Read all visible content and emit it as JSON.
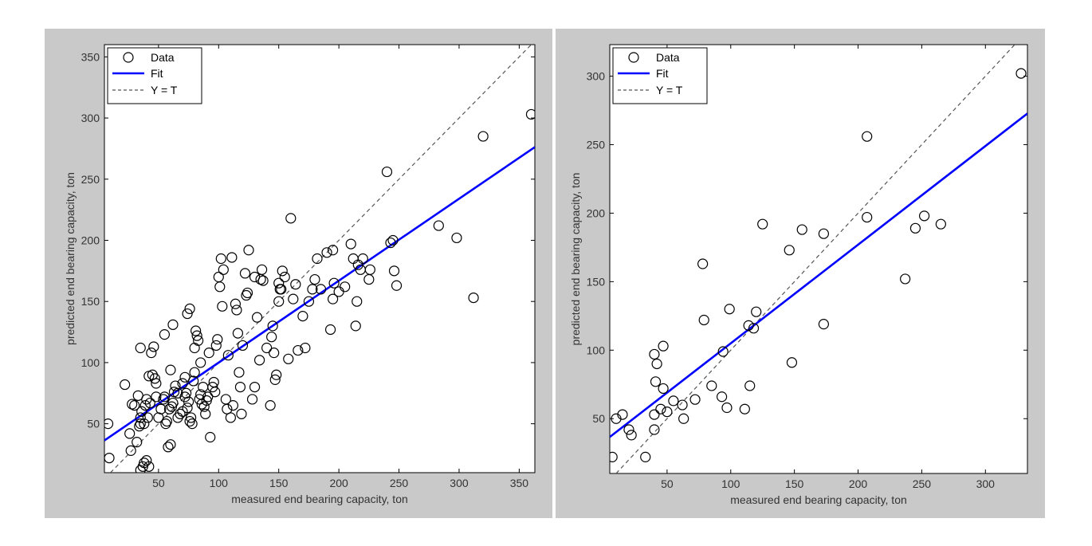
{
  "chart_data": [
    {
      "type": "scatter",
      "xlabel": "measured end bearing capacity, ton",
      "ylabel": "predicted end bearing capacity, ton",
      "xlim": [
        5,
        363
      ],
      "ylim": [
        10,
        360
      ],
      "xticks": [
        50,
        100,
        150,
        200,
        250,
        300,
        350
      ],
      "yticks": [
        50,
        100,
        150,
        200,
        250,
        300,
        350
      ],
      "legend": {
        "position": "top-left",
        "entries": [
          "Data",
          "Fit",
          "Y = T"
        ]
      },
      "colors": {
        "data": "#000000",
        "fit": "#0000ff",
        "identity": "#555555"
      },
      "fit": {
        "slope": 0.67,
        "intercept": 33
      },
      "series": [
        {
          "name": "Data",
          "points": [
            [
              8,
              50
            ],
            [
              9,
              22
            ],
            [
              22,
              82
            ],
            [
              26,
              42
            ],
            [
              30,
              65
            ],
            [
              27,
              28
            ],
            [
              32,
              35
            ],
            [
              28,
              66
            ],
            [
              33,
              73
            ],
            [
              35,
              112
            ],
            [
              34,
              48
            ],
            [
              35,
              55
            ],
            [
              36,
              60
            ],
            [
              38,
              50
            ],
            [
              37,
              15
            ],
            [
              40,
              70
            ],
            [
              41,
              55
            ],
            [
              42,
              89
            ],
            [
              43,
              67
            ],
            [
              44,
              108
            ],
            [
              45,
              90
            ],
            [
              46,
              113
            ],
            [
              47,
              87
            ],
            [
              48,
              83
            ],
            [
              35,
              12
            ],
            [
              42,
              15
            ],
            [
              38,
              18
            ],
            [
              40,
              20
            ],
            [
              50,
              55
            ],
            [
              52,
              62
            ],
            [
              54,
              70
            ],
            [
              55,
              72
            ],
            [
              56,
              50
            ],
            [
              57,
              52
            ],
            [
              58,
              31
            ],
            [
              60,
              33
            ],
            [
              59,
              62
            ],
            [
              61,
              64
            ],
            [
              62,
              67
            ],
            [
              63,
              76
            ],
            [
              64,
              81
            ],
            [
              60,
              94
            ],
            [
              62,
              131
            ],
            [
              55,
              123
            ],
            [
              66,
              55
            ],
            [
              68,
              58
            ],
            [
              70,
              60
            ],
            [
              70,
              83
            ],
            [
              72,
              72
            ],
            [
              73,
              75
            ],
            [
              74,
              63
            ],
            [
              75,
              68
            ],
            [
              76,
              52
            ],
            [
              77,
              55
            ],
            [
              74,
              140
            ],
            [
              76,
              144
            ],
            [
              78,
              50
            ],
            [
              79,
              85
            ],
            [
              80,
              92
            ],
            [
              80,
              112
            ],
            [
              81,
              126
            ],
            [
              82,
              122
            ],
            [
              83,
              118
            ],
            [
              84,
              70
            ],
            [
              85,
              74
            ],
            [
              86,
              66
            ],
            [
              87,
              80
            ],
            [
              88,
              64
            ],
            [
              89,
              58
            ],
            [
              90,
              69
            ],
            [
              91,
              72
            ],
            [
              92,
              108
            ],
            [
              93,
              39
            ],
            [
              95,
              80
            ],
            [
              96,
              84
            ],
            [
              97,
              76
            ],
            [
              98,
              114
            ],
            [
              99,
              119
            ],
            [
              100,
              170
            ],
            [
              101,
              162
            ],
            [
              102,
              185
            ],
            [
              103,
              146
            ],
            [
              104,
              176
            ],
            [
              106,
              70
            ],
            [
              107,
              62
            ],
            [
              108,
              106
            ],
            [
              110,
              55
            ],
            [
              111,
              186
            ],
            [
              112,
              65
            ],
            [
              114,
              148
            ],
            [
              115,
              143
            ],
            [
              116,
              124
            ],
            [
              117,
              92
            ],
            [
              118,
              80
            ],
            [
              119,
              58
            ],
            [
              120,
              114
            ],
            [
              122,
              173
            ],
            [
              123,
              155
            ],
            [
              124,
              157
            ],
            [
              125,
              192
            ],
            [
              128,
              70
            ],
            [
              130,
              80
            ],
            [
              132,
              137
            ],
            [
              134,
              102
            ],
            [
              135,
              168
            ],
            [
              136,
              176
            ],
            [
              137,
              167
            ],
            [
              140,
              112
            ],
            [
              143,
              65
            ],
            [
              144,
              121
            ],
            [
              145,
              130
            ],
            [
              146,
              108
            ],
            [
              147,
              86
            ],
            [
              148,
              90
            ],
            [
              150,
              150
            ],
            [
              151,
              160
            ],
            [
              152,
              160
            ],
            [
              153,
              175
            ],
            [
              155,
              170
            ],
            [
              158,
              103
            ],
            [
              160,
              218
            ],
            [
              162,
              152
            ],
            [
              164,
              164
            ],
            [
              166,
              110
            ],
            [
              170,
              138
            ],
            [
              172,
              112
            ],
            [
              178,
              160
            ],
            [
              180,
              168
            ],
            [
              182,
              185
            ],
            [
              185,
              160
            ],
            [
              190,
              190
            ],
            [
              193,
              127
            ],
            [
              195,
              152
            ],
            [
              196,
              165
            ],
            [
              200,
              158
            ],
            [
              205,
              162
            ],
            [
              210,
              197
            ],
            [
              212,
              185
            ],
            [
              214,
              130
            ],
            [
              215,
              150
            ],
            [
              216,
              180
            ],
            [
              218,
              176
            ],
            [
              220,
              185
            ],
            [
              225,
              168
            ],
            [
              226,
              176
            ],
            [
              240,
              256
            ],
            [
              243,
              198
            ],
            [
              245,
              200
            ],
            [
              246,
              175
            ],
            [
              248,
              163
            ],
            [
              283,
              212
            ],
            [
              298,
              202
            ],
            [
              312,
              153
            ],
            [
              320,
              285
            ],
            [
              360,
              303
            ],
            [
              35,
              50
            ],
            [
              39,
              65
            ],
            [
              48,
              72
            ],
            [
              66,
              75
            ],
            [
              72,
              88
            ],
            [
              85,
              100
            ],
            [
              130,
              170
            ],
            [
              150,
              165
            ],
            [
              175,
              150
            ],
            [
              195,
              192
            ]
          ]
        }
      ]
    },
    {
      "type": "scatter",
      "xlabel": "measured end bearing capacity, ton",
      "ylabel": "predicted end bearing capacity, ton",
      "xlim": [
        5,
        333
      ],
      "ylim": [
        10,
        323
      ],
      "xticks": [
        50,
        100,
        150,
        200,
        250,
        300
      ],
      "yticks": [
        50,
        100,
        150,
        200,
        250,
        300
      ],
      "legend": {
        "position": "top-left",
        "entries": [
          "Data",
          "Fit",
          "Y = T"
        ]
      },
      "colors": {
        "data": "#000000",
        "fit": "#0000ff",
        "identity": "#555555"
      },
      "fit": {
        "slope": 0.72,
        "intercept": 33
      },
      "series": [
        {
          "name": "Data",
          "points": [
            [
              7,
              22
            ],
            [
              10,
              50
            ],
            [
              15,
              53
            ],
            [
              20,
              42
            ],
            [
              22,
              38
            ],
            [
              33,
              22
            ],
            [
              40,
              42
            ],
            [
              40,
              53
            ],
            [
              40,
              97
            ],
            [
              41,
              77
            ],
            [
              42,
              90
            ],
            [
              45,
              57
            ],
            [
              47,
              103
            ],
            [
              47,
              72
            ],
            [
              50,
              55
            ],
            [
              55,
              63
            ],
            [
              62,
              60
            ],
            [
              63,
              50
            ],
            [
              72,
              64
            ],
            [
              78,
              163
            ],
            [
              79,
              122
            ],
            [
              85,
              74
            ],
            [
              93,
              66
            ],
            [
              94,
              99
            ],
            [
              97,
              58
            ],
            [
              99,
              130
            ],
            [
              111,
              57
            ],
            [
              114,
              118
            ],
            [
              115,
              74
            ],
            [
              118,
              116
            ],
            [
              120,
              128
            ],
            [
              125,
              192
            ],
            [
              146,
              173
            ],
            [
              148,
              91
            ],
            [
              156,
              188
            ],
            [
              173,
              185
            ],
            [
              173,
              119
            ],
            [
              207,
              256
            ],
            [
              207,
              197
            ],
            [
              237,
              152
            ],
            [
              245,
              189
            ],
            [
              252,
              198
            ],
            [
              265,
              192
            ],
            [
              328,
              302
            ]
          ]
        }
      ]
    }
  ]
}
